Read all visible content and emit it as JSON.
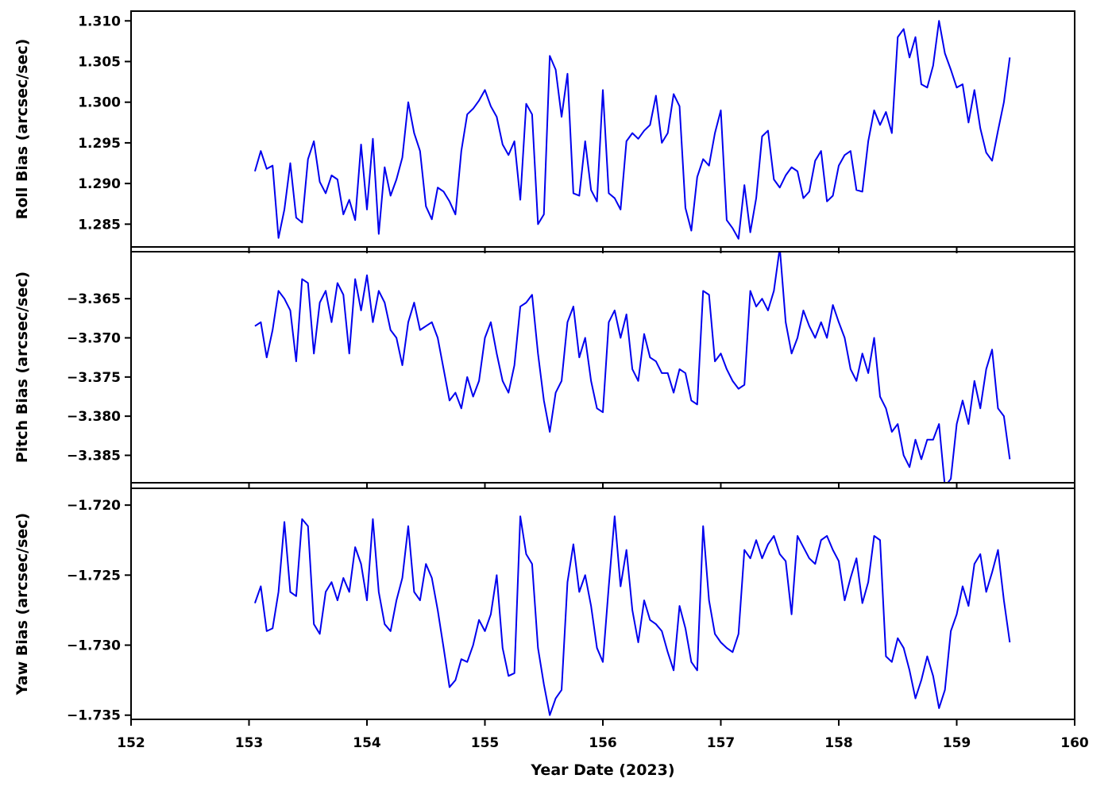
{
  "figure": {
    "background": "#ffffff",
    "line_color": "#0000ee",
    "x_axis_label": "Year Date (2023)"
  },
  "chart_data": [
    {
      "type": "line",
      "name": "roll-bias",
      "ylabel": "Roll Bias (arcsec/sec)",
      "xlabel": "",
      "line_color": "#0000ee",
      "line_width": 2,
      "xlim": [
        152,
        160
      ],
      "ylim": [
        1.2822,
        1.3112
      ],
      "xticks": [
        152,
        153,
        154,
        155,
        156,
        157,
        158,
        159,
        160
      ],
      "xtick_labels": [
        "152",
        "153",
        "154",
        "155",
        "156",
        "157",
        "158",
        "159",
        "160"
      ],
      "show_x_tick_labels": false,
      "yticks": [
        1.285,
        1.29,
        1.295,
        1.3,
        1.305,
        1.31
      ],
      "ytick_labels": [
        "1.285",
        "1.290",
        "1.295",
        "1.300",
        "1.305",
        "1.310"
      ],
      "x_start": 153.05,
      "x_step": 0.05,
      "values": [
        1.2915,
        1.294,
        1.2918,
        1.2922,
        1.2833,
        1.2868,
        1.2925,
        1.2858,
        1.2852,
        1.293,
        1.2952,
        1.2902,
        1.2888,
        1.291,
        1.2905,
        1.2862,
        1.288,
        1.2855,
        1.2948,
        1.2868,
        1.2955,
        1.2838,
        1.292,
        1.2885,
        1.2905,
        1.2932,
        1.3,
        1.2962,
        1.294,
        1.2872,
        1.2856,
        1.2895,
        1.289,
        1.2878,
        1.2862,
        1.294,
        1.2985,
        1.2992,
        1.3002,
        1.3015,
        1.2995,
        1.2982,
        1.2948,
        1.2935,
        1.2952,
        1.288,
        1.2998,
        1.2985,
        1.285,
        1.2862,
        1.3057,
        1.304,
        1.2982,
        1.3035,
        1.2888,
        1.2885,
        1.2952,
        1.2892,
        1.2878,
        1.3015,
        1.2888,
        1.2882,
        1.2868,
        1.2952,
        1.2962,
        1.2955,
        1.2965,
        1.2972,
        1.3008,
        1.295,
        1.2962,
        1.301,
        1.2995,
        1.287,
        1.2842,
        1.2908,
        1.293,
        1.2922,
        1.2962,
        1.299,
        1.2855,
        1.2845,
        1.2832,
        1.2898,
        1.284,
        1.2882,
        1.2958,
        1.2965,
        1.2905,
        1.2895,
        1.291,
        1.292,
        1.2915,
        1.2882,
        1.289,
        1.2928,
        1.294,
        1.2878,
        1.2885,
        1.2922,
        1.2935,
        1.294,
        1.2892,
        1.289,
        1.2952,
        1.299,
        1.2972,
        1.2988,
        1.2962,
        1.308,
        1.309,
        1.3055,
        1.308,
        1.3022,
        1.3018,
        1.3045,
        1.31,
        1.306,
        1.304,
        1.3018,
        1.3022,
        1.2975,
        1.3015,
        1.2968,
        1.2938,
        1.2928,
        1.2965,
        1.3,
        1.3055
      ]
    },
    {
      "type": "line",
      "name": "pitch-bias",
      "ylabel": "Pitch Bias (arcsec/sec)",
      "xlabel": "",
      "line_color": "#0000ee",
      "line_width": 2,
      "xlim": [
        152,
        160
      ],
      "ylim": [
        -3.3885,
        -3.359
      ],
      "xticks": [
        152,
        153,
        154,
        155,
        156,
        157,
        158,
        159,
        160
      ],
      "xtick_labels": [
        "152",
        "153",
        "154",
        "155",
        "156",
        "157",
        "158",
        "159",
        "160"
      ],
      "show_x_tick_labels": false,
      "yticks": [
        -3.385,
        -3.38,
        -3.375,
        -3.37,
        -3.365
      ],
      "ytick_labels": [
        "−3.385",
        "−3.380",
        "−3.375",
        "−3.370",
        "−3.365"
      ],
      "x_start": 153.05,
      "x_step": 0.05,
      "values": [
        -3.3685,
        -3.368,
        -3.3725,
        -3.369,
        -3.364,
        -3.365,
        -3.3665,
        -3.373,
        -3.3625,
        -3.363,
        -3.372,
        -3.3655,
        -3.364,
        -3.368,
        -3.363,
        -3.3645,
        -3.372,
        -3.3625,
        -3.3665,
        -3.362,
        -3.368,
        -3.364,
        -3.3655,
        -3.369,
        -3.37,
        -3.3735,
        -3.368,
        -3.3655,
        -3.369,
        -3.3685,
        -3.368,
        -3.37,
        -3.374,
        -3.378,
        -3.377,
        -3.379,
        -3.375,
        -3.3775,
        -3.3755,
        -3.37,
        -3.368,
        -3.372,
        -3.3755,
        -3.377,
        -3.3735,
        -3.366,
        -3.3655,
        -3.3645,
        -3.372,
        -3.378,
        -3.382,
        -3.377,
        -3.3755,
        -3.368,
        -3.366,
        -3.3725,
        -3.37,
        -3.3755,
        -3.379,
        -3.3795,
        -3.368,
        -3.3665,
        -3.37,
        -3.367,
        -3.374,
        -3.3755,
        -3.3695,
        -3.3725,
        -3.373,
        -3.3745,
        -3.3745,
        -3.377,
        -3.374,
        -3.3745,
        -3.378,
        -3.3785,
        -3.364,
        -3.3645,
        -3.373,
        -3.372,
        -3.374,
        -3.3755,
        -3.3765,
        -3.376,
        -3.364,
        -3.366,
        -3.365,
        -3.3665,
        -3.364,
        -3.3585,
        -3.368,
        -3.372,
        -3.37,
        -3.3665,
        -3.3685,
        -3.37,
        -3.368,
        -3.37,
        -3.3658,
        -3.368,
        -3.37,
        -3.374,
        -3.3755,
        -3.372,
        -3.3745,
        -3.37,
        -3.3775,
        -3.379,
        -3.382,
        -3.381,
        -3.385,
        -3.3865,
        -3.383,
        -3.3855,
        -3.383,
        -3.383,
        -3.381,
        -3.389,
        -3.388,
        -3.381,
        -3.378,
        -3.381,
        -3.3755,
        -3.379,
        -3.374,
        -3.3715,
        -3.379,
        -3.38,
        -3.3855
      ]
    },
    {
      "type": "line",
      "name": "yaw-bias",
      "ylabel": "Yaw Bias (arcsec/sec)",
      "xlabel": "Year Date (2023)",
      "line_color": "#0000ee",
      "line_width": 2,
      "xlim": [
        152,
        160
      ],
      "ylim": [
        -1.7353,
        -1.7188
      ],
      "xticks": [
        152,
        153,
        154,
        155,
        156,
        157,
        158,
        159,
        160
      ],
      "xtick_labels": [
        "152",
        "153",
        "154",
        "155",
        "156",
        "157",
        "158",
        "159",
        "160"
      ],
      "show_x_tick_labels": true,
      "yticks": [
        -1.735,
        -1.73,
        -1.725,
        -1.72
      ],
      "ytick_labels": [
        "−1.735",
        "−1.730",
        "−1.725",
        "−1.720"
      ],
      "x_start": 153.05,
      "x_step": 0.05,
      "values": [
        -1.727,
        -1.7258,
        -1.729,
        -1.7288,
        -1.7262,
        -1.7212,
        -1.7262,
        -1.7265,
        -1.721,
        -1.7215,
        -1.7285,
        -1.7292,
        -1.7262,
        -1.7255,
        -1.7268,
        -1.7252,
        -1.7262,
        -1.723,
        -1.7242,
        -1.7268,
        -1.721,
        -1.7262,
        -1.7285,
        -1.729,
        -1.7268,
        -1.7252,
        -1.7215,
        -1.7262,
        -1.7268,
        -1.7242,
        -1.7252,
        -1.7275,
        -1.7302,
        -1.733,
        -1.7325,
        -1.731,
        -1.7312,
        -1.73,
        -1.7282,
        -1.729,
        -1.7278,
        -1.725,
        -1.7302,
        -1.7322,
        -1.732,
        -1.7208,
        -1.7235,
        -1.7242,
        -1.7302,
        -1.7328,
        -1.735,
        -1.7338,
        -1.7332,
        -1.7255,
        -1.7228,
        -1.7262,
        -1.725,
        -1.7272,
        -1.7302,
        -1.7312,
        -1.7258,
        -1.7208,
        -1.7258,
        -1.7232,
        -1.7275,
        -1.7298,
        -1.7268,
        -1.7282,
        -1.7285,
        -1.729,
        -1.7305,
        -1.7318,
        -1.7272,
        -1.7288,
        -1.7312,
        -1.7318,
        -1.7215,
        -1.7268,
        -1.7292,
        -1.7298,
        -1.7302,
        -1.7305,
        -1.7292,
        -1.7232,
        -1.7238,
        -1.7225,
        -1.7238,
        -1.7228,
        -1.7222,
        -1.7235,
        -1.724,
        -1.7278,
        -1.7222,
        -1.723,
        -1.7238,
        -1.7242,
        -1.7225,
        -1.7222,
        -1.7232,
        -1.724,
        -1.7268,
        -1.7252,
        -1.7238,
        -1.727,
        -1.7255,
        -1.7222,
        -1.7225,
        -1.7308,
        -1.7312,
        -1.7295,
        -1.7302,
        -1.7318,
        -1.7338,
        -1.7325,
        -1.7308,
        -1.7322,
        -1.7345,
        -1.7332,
        -1.729,
        -1.7278,
        -1.7258,
        -1.7272,
        -1.7242,
        -1.7235,
        -1.7262,
        -1.7248,
        -1.7232,
        -1.7268,
        -1.7298
      ]
    }
  ]
}
